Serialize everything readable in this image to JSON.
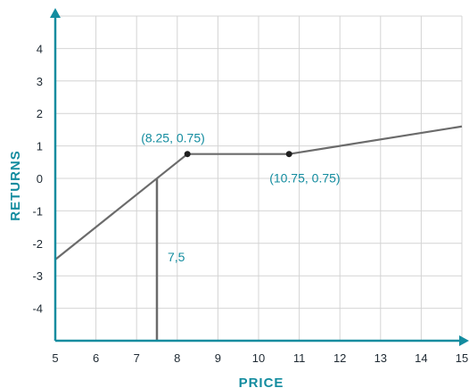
{
  "chart_data": {
    "type": "line",
    "title": "",
    "xlabel": "PRICE",
    "ylabel": "RETURNS",
    "xlim": [
      5,
      15
    ],
    "ylim": [
      -5,
      5
    ],
    "x_ticks": [
      5,
      6,
      7,
      8,
      9,
      10,
      11,
      12,
      13,
      14,
      15
    ],
    "y_ticks": [
      -4,
      -3,
      -2,
      -1,
      0,
      1,
      2,
      3,
      4
    ],
    "grid": true,
    "series": [
      {
        "x": [
          5,
          8.25,
          10.75,
          15
        ],
        "y": [
          -2.5,
          0.75,
          0.75,
          1.6
        ],
        "color": "#6b6b6b"
      }
    ],
    "points": [
      {
        "x": 8.25,
        "y": 0.75,
        "label": "(8.25, 0.75)"
      },
      {
        "x": 10.75,
        "y": 0.75,
        "label": "(10.75, 0.75)"
      }
    ],
    "reference_line": {
      "x": 7.5,
      "y_from": -5,
      "y_to": 0,
      "label": "7,5"
    },
    "colors": {
      "axis": "#138c9f",
      "grid": "#d4d4d4",
      "line": "#6b6b6b",
      "point": "#1f1f1f",
      "annotation": "#138c9f",
      "tick_text": "#1f2a33"
    }
  }
}
